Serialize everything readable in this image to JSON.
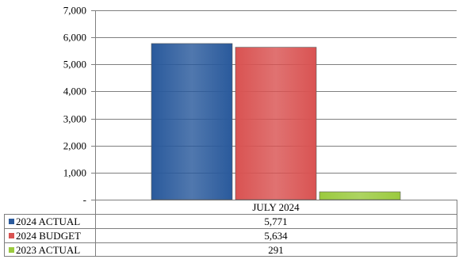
{
  "chart_data": {
    "type": "bar",
    "categories": [
      "JULY 2024"
    ],
    "series": [
      {
        "name": "2024 ACTUAL",
        "values": [
          5771
        ],
        "label": "5,771",
        "color": "#2a5a9c"
      },
      {
        "name": "2024 BUDGET",
        "values": [
          5634
        ],
        "label": "5,634",
        "color": "#d95352"
      },
      {
        "name": "2023 ACTUAL",
        "values": [
          291
        ],
        "label": "291",
        "color": "#9bca3e"
      }
    ],
    "ylim": [
      0,
      7000
    ],
    "yticks": [
      {
        "value": 0,
        "label": "-"
      },
      {
        "value": 1000,
        "label": "1,000"
      },
      {
        "value": 2000,
        "label": "2,000"
      },
      {
        "value": 3000,
        "label": "3,000"
      },
      {
        "value": 4000,
        "label": "4,000"
      },
      {
        "value": 5000,
        "label": "5,000"
      },
      {
        "value": 6000,
        "label": "6,000"
      },
      {
        "value": 7000,
        "label": "7,000"
      }
    ],
    "grid": true,
    "legend": "data-table-left",
    "title": "",
    "xlabel": "",
    "ylabel": ""
  }
}
